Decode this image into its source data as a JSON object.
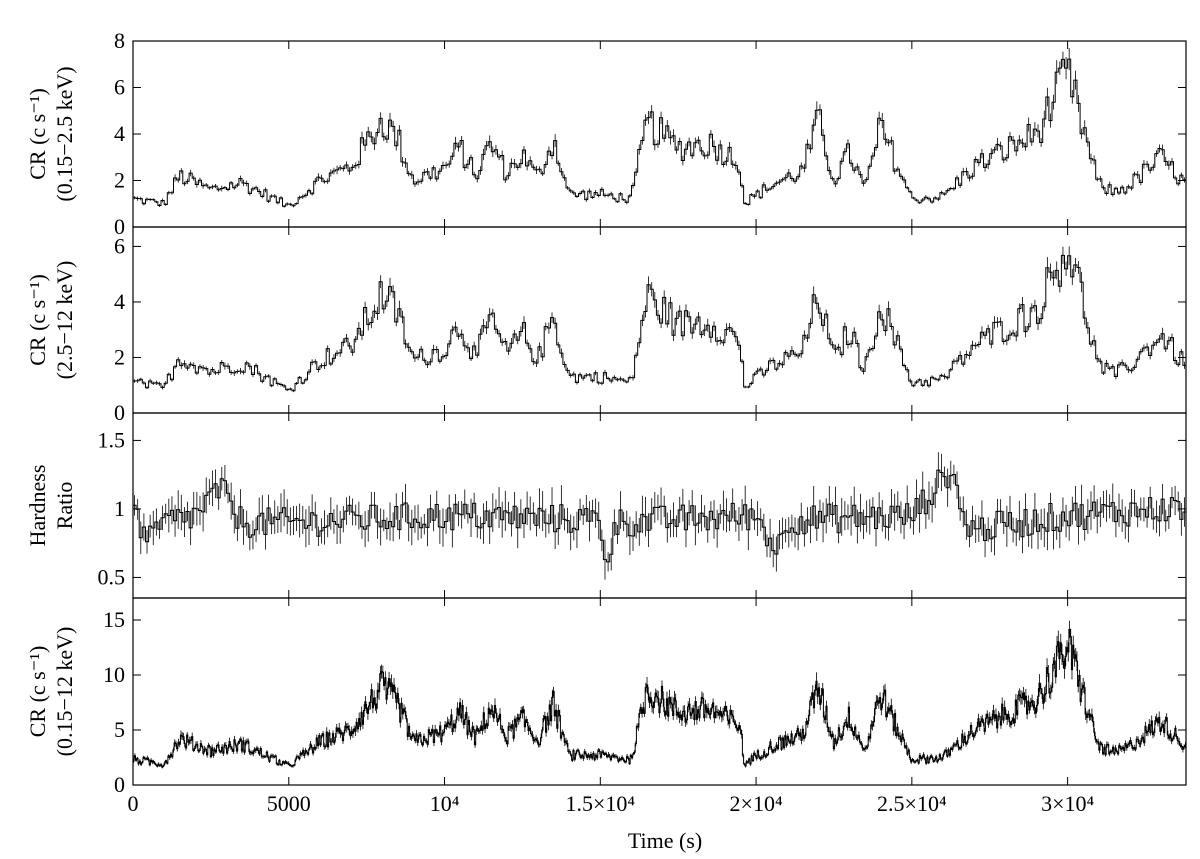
{
  "chart_data": {
    "type": "line",
    "subtype": "stacked-light-curves-step-with-error-bars",
    "xlabel": "Time (s)",
    "xlim": [
      0,
      33800
    ],
    "xticks": [
      {
        "value": 0,
        "label": "0"
      },
      {
        "value": 5000,
        "label": "5000"
      },
      {
        "value": 10000,
        "label": "10⁴"
      },
      {
        "value": 15000,
        "label": "1.5×10⁴"
      },
      {
        "value": 20000,
        "label": "2×10⁴"
      },
      {
        "value": 25000,
        "label": "2.5×10⁴"
      },
      {
        "value": 30000,
        "label": "3×10⁴"
      }
    ],
    "panels": [
      {
        "id": "soft",
        "ylabel_line1": "CR (c s⁻¹)",
        "ylabel_line2": "(0.15−2.5 keV)",
        "ylim": [
          0,
          8
        ],
        "yticks": [
          {
            "value": 0,
            "label": "0"
          },
          {
            "value": 2,
            "label": "2"
          },
          {
            "value": 4,
            "label": "4"
          },
          {
            "value": 6,
            "label": "6"
          },
          {
            "value": 8,
            "label": "8"
          }
        ],
        "bin_width": 100,
        "error_fraction": 0.06,
        "x": [
          0,
          1000,
          1500,
          2500,
          3500,
          5000,
          6000,
          7000,
          8000,
          8500,
          9000,
          10000,
          10500,
          11000,
          11500,
          12000,
          12500,
          13000,
          13500,
          14000,
          15000,
          16000,
          16500,
          17500,
          18500,
          19500,
          19600,
          20500,
          21500,
          22000,
          22500,
          23000,
          23500,
          24000,
          25000,
          26000,
          27000,
          28000,
          29000,
          30000,
          30300,
          31000,
          31500,
          32000,
          33000,
          33800
        ],
        "values": [
          1.2,
          1.0,
          2.2,
          1.6,
          1.9,
          0.9,
          2.0,
          2.6,
          4.6,
          3.8,
          2.0,
          2.5,
          3.4,
          2.2,
          3.6,
          2.3,
          3.1,
          2.1,
          3.8,
          1.4,
          1.4,
          1.2,
          4.5,
          3.4,
          3.6,
          2.8,
          1.0,
          1.8,
          2.4,
          4.6,
          2.0,
          3.2,
          1.6,
          4.3,
          1.2,
          1.3,
          2.6,
          3.3,
          4.0,
          6.6,
          5.2,
          1.8,
          1.5,
          1.8,
          3.0,
          1.8
        ]
      },
      {
        "id": "hard",
        "ylabel_line1": "CR (c s⁻¹)",
        "ylabel_line2": "(2.5−12 keV)",
        "ylim": [
          0,
          6.7
        ],
        "yticks": [
          {
            "value": 0,
            "label": "0"
          },
          {
            "value": 2,
            "label": "2"
          },
          {
            "value": 4,
            "label": "4"
          },
          {
            "value": 6,
            "label": "6"
          }
        ],
        "bin_width": 100,
        "error_fraction": 0.06,
        "x": [
          0,
          1000,
          1500,
          2500,
          3500,
          5000,
          6000,
          7000,
          8000,
          8500,
          9000,
          10000,
          10500,
          11000,
          11500,
          12000,
          12500,
          13000,
          13500,
          14000,
          15000,
          16000,
          16500,
          17500,
          18500,
          19500,
          19600,
          20500,
          21500,
          22000,
          22500,
          23000,
          23500,
          24000,
          25000,
          26000,
          27000,
          28000,
          29000,
          30000,
          30300,
          31000,
          31500,
          32000,
          33000,
          33800
        ],
        "values": [
          1.1,
          0.9,
          2.0,
          1.5,
          1.8,
          0.8,
          1.9,
          2.4,
          4.3,
          3.6,
          1.9,
          2.3,
          3.2,
          2.0,
          3.4,
          2.1,
          2.9,
          1.9,
          3.5,
          1.3,
          1.3,
          1.1,
          4.2,
          3.2,
          3.3,
          2.6,
          0.9,
          1.7,
          2.2,
          4.3,
          1.9,
          3.0,
          1.5,
          4.0,
          1.1,
          1.2,
          2.4,
          3.1,
          3.7,
          6.1,
          4.9,
          1.7,
          1.4,
          1.7,
          2.8,
          1.7
        ]
      },
      {
        "id": "hardness",
        "ylabel_line1": "Hardness",
        "ylabel_line2": "Ratio",
        "ylim": [
          0.35,
          1.7
        ],
        "yticks": [
          {
            "value": 0.5,
            "label": "0.5"
          },
          {
            "value": 1,
            "label": "1"
          },
          {
            "value": 1.5,
            "label": "1.5"
          }
        ],
        "bin_width": 100,
        "error_abs": 0.1,
        "x": [
          0,
          500,
          1000,
          2000,
          2800,
          3500,
          5000,
          10000,
          15000,
          15200,
          15500,
          20000,
          20700,
          21000,
          25000,
          26300,
          26600,
          27000,
          30000,
          33000,
          33800
        ],
        "values": [
          1.0,
          0.75,
          0.9,
          0.95,
          1.15,
          0.9,
          0.9,
          0.95,
          0.92,
          0.6,
          0.9,
          0.95,
          0.7,
          0.92,
          0.95,
          1.3,
          0.95,
          0.85,
          0.95,
          1.0,
          1.0
        ]
      },
      {
        "id": "total",
        "ylabel_line1": "CR (c s⁻¹)",
        "ylabel_line2": "(0.15−12 keV)",
        "ylim": [
          0,
          17
        ],
        "yticks": [
          {
            "value": 0,
            "label": "0"
          },
          {
            "value": 5,
            "label": "5"
          },
          {
            "value": 10,
            "label": "10"
          },
          {
            "value": 15,
            "label": "15"
          }
        ],
        "bin_width": 40,
        "error_fraction": 0.07,
        "x": [
          0,
          1000,
          1500,
          2500,
          3500,
          5000,
          6000,
          7000,
          8000,
          8500,
          9000,
          10000,
          10500,
          11000,
          11500,
          12000,
          12500,
          13000,
          13500,
          14000,
          15000,
          16000,
          16500,
          17500,
          18500,
          19500,
          19600,
          20500,
          21500,
          22000,
          22500,
          23000,
          23500,
          24000,
          25000,
          26000,
          27000,
          28000,
          29000,
          30000,
          30300,
          31000,
          31500,
          32000,
          33000,
          33800
        ],
        "values": [
          2.3,
          1.9,
          4.2,
          3.1,
          3.7,
          1.7,
          3.9,
          5.0,
          8.9,
          7.4,
          3.9,
          4.8,
          6.6,
          4.2,
          7.0,
          4.4,
          6.0,
          4.0,
          7.3,
          2.7,
          2.7,
          2.3,
          8.7,
          6.6,
          6.9,
          5.4,
          1.9,
          3.5,
          4.6,
          8.9,
          3.9,
          6.2,
          3.1,
          8.3,
          2.3,
          2.5,
          5.0,
          6.4,
          7.7,
          12.7,
          10.1,
          3.5,
          2.9,
          3.5,
          5.8,
          3.5
        ]
      }
    ]
  }
}
